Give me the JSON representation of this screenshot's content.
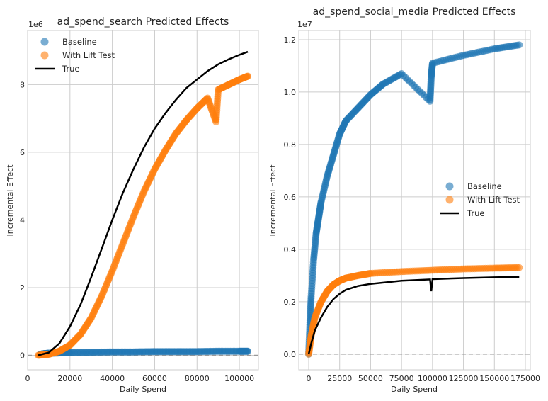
{
  "chart_data": [
    {
      "type": "scatter",
      "title": "ad_spend_search Predicted Effects",
      "xlabel": "Daily Spend",
      "ylabel": "Incremental Effect",
      "offset_text": "1e6",
      "xlim": [
        0,
        109000
      ],
      "ylim": [
        -0.43,
        9.6
      ],
      "y_scale": 1000000,
      "x_ticks": [
        0,
        20000,
        40000,
        60000,
        80000,
        100000
      ],
      "x_tick_labels": [
        "0",
        "20000",
        "40000",
        "60000",
        "80000",
        "100000"
      ],
      "y_ticks": [
        0,
        2,
        4,
        6,
        8
      ],
      "y_tick_labels": [
        "0",
        "2",
        "4",
        "6",
        "8"
      ],
      "grid": true,
      "legend_position": "top-left",
      "series": [
        {
          "name": "Baseline",
          "color": "#1f77b4",
          "points": [
            [
              6000,
              0.03
            ],
            [
              8000,
              0.05
            ],
            [
              10000,
              0.06
            ],
            [
              15000,
              0.07
            ],
            [
              20000,
              0.08
            ],
            [
              30000,
              0.09
            ],
            [
              40000,
              0.1
            ],
            [
              50000,
              0.1
            ],
            [
              60000,
              0.11
            ],
            [
              70000,
              0.11
            ],
            [
              80000,
              0.11
            ],
            [
              90000,
              0.12
            ],
            [
              100000,
              0.12
            ],
            [
              104000,
              0.12
            ]
          ]
        },
        {
          "name": "With Lift Test",
          "color": "#ff7f0e",
          "points": [
            [
              5000,
              0.0
            ],
            [
              10000,
              0.03
            ],
            [
              15000,
              0.12
            ],
            [
              20000,
              0.3
            ],
            [
              25000,
              0.62
            ],
            [
              30000,
              1.1
            ],
            [
              35000,
              1.75
            ],
            [
              40000,
              2.5
            ],
            [
              45000,
              3.3
            ],
            [
              50000,
              4.1
            ],
            [
              55000,
              4.85
            ],
            [
              60000,
              5.5
            ],
            [
              65000,
              6.05
            ],
            [
              70000,
              6.55
            ],
            [
              75000,
              6.95
            ],
            [
              80000,
              7.3
            ],
            [
              85000,
              7.6
            ],
            [
              90000,
              7.85
            ],
            [
              95000,
              8.0
            ],
            [
              100000,
              8.15
            ],
            [
              104000,
              8.25
            ],
            [
              89000,
              6.9
            ]
          ]
        },
        {
          "name": "True",
          "color": "#000000",
          "points": [
            [
              5000,
              0.0
            ],
            [
              10000,
              0.08
            ],
            [
              15000,
              0.35
            ],
            [
              20000,
              0.85
            ],
            [
              25000,
              1.5
            ],
            [
              30000,
              2.3
            ],
            [
              35000,
              3.15
            ],
            [
              40000,
              4.0
            ],
            [
              45000,
              4.8
            ],
            [
              50000,
              5.5
            ],
            [
              55000,
              6.15
            ],
            [
              60000,
              6.7
            ],
            [
              65000,
              7.15
            ],
            [
              70000,
              7.55
            ],
            [
              75000,
              7.9
            ],
            [
              80000,
              8.15
            ],
            [
              85000,
              8.4
            ],
            [
              90000,
              8.6
            ],
            [
              95000,
              8.75
            ],
            [
              100000,
              8.88
            ],
            [
              104000,
              8.97
            ]
          ]
        }
      ]
    },
    {
      "type": "scatter",
      "title": "ad_spend_social_media Predicted Effects",
      "xlabel": "Daily Spend",
      "ylabel": "Incremental Effect",
      "offset_text": "1e7",
      "xlim": [
        -8000,
        179000
      ],
      "ylim": [
        -0.06,
        1.235
      ],
      "y_scale": 10000000,
      "x_ticks": [
        0,
        25000,
        50000,
        75000,
        100000,
        125000,
        150000,
        175000
      ],
      "x_tick_labels": [
        "0",
        "25000",
        "50000",
        "75000",
        "100000",
        "125000",
        "150000",
        "175000"
      ],
      "y_ticks": [
        0.0,
        0.2,
        0.4,
        0.6,
        0.8,
        1.0,
        1.2
      ],
      "y_tick_labels": [
        "0.0",
        "0.2",
        "0.4",
        "0.6",
        "0.8",
        "1.0",
        "1.2"
      ],
      "grid": true,
      "legend_position": "center-right",
      "series": [
        {
          "name": "Baseline",
          "color": "#1f77b4",
          "points": [
            [
              0,
              0.0
            ],
            [
              1000,
              0.12
            ],
            [
              2000,
              0.22
            ],
            [
              4000,
              0.36
            ],
            [
              6000,
              0.46
            ],
            [
              8000,
              0.52
            ],
            [
              10000,
              0.58
            ],
            [
              15000,
              0.68
            ],
            [
              20000,
              0.76
            ],
            [
              25000,
              0.84
            ],
            [
              30000,
              0.89
            ],
            [
              40000,
              0.94
            ],
            [
              50000,
              0.99
            ],
            [
              60000,
              1.03
            ],
            [
              75000,
              1.07
            ],
            [
              100000,
              1.11
            ],
            [
              125000,
              1.14
            ],
            [
              150000,
              1.165
            ],
            [
              170000,
              1.18
            ],
            [
              98000,
              0.965
            ],
            [
              99000,
              1.06
            ]
          ]
        },
        {
          "name": "With Lift Test",
          "color": "#ff7f0e",
          "points": [
            [
              0,
              0.0
            ],
            [
              2000,
              0.07
            ],
            [
              5000,
              0.14
            ],
            [
              10000,
              0.2
            ],
            [
              15000,
              0.24
            ],
            [
              20000,
              0.265
            ],
            [
              25000,
              0.28
            ],
            [
              30000,
              0.29
            ],
            [
              40000,
              0.3
            ],
            [
              50000,
              0.308
            ],
            [
              75000,
              0.315
            ],
            [
              100000,
              0.32
            ],
            [
              125000,
              0.325
            ],
            [
              150000,
              0.328
            ],
            [
              170000,
              0.33
            ]
          ]
        },
        {
          "name": "True",
          "color": "#000000",
          "points": [
            [
              0,
              0.0
            ],
            [
              2000,
              0.04
            ],
            [
              5000,
              0.09
            ],
            [
              10000,
              0.14
            ],
            [
              15000,
              0.18
            ],
            [
              20000,
              0.21
            ],
            [
              25000,
              0.23
            ],
            [
              30000,
              0.245
            ],
            [
              40000,
              0.26
            ],
            [
              50000,
              0.268
            ],
            [
              75000,
              0.28
            ],
            [
              98000,
              0.285
            ],
            [
              99000,
              0.24
            ],
            [
              100000,
              0.286
            ],
            [
              125000,
              0.29
            ],
            [
              150000,
              0.293
            ],
            [
              170000,
              0.295
            ]
          ]
        }
      ]
    }
  ]
}
